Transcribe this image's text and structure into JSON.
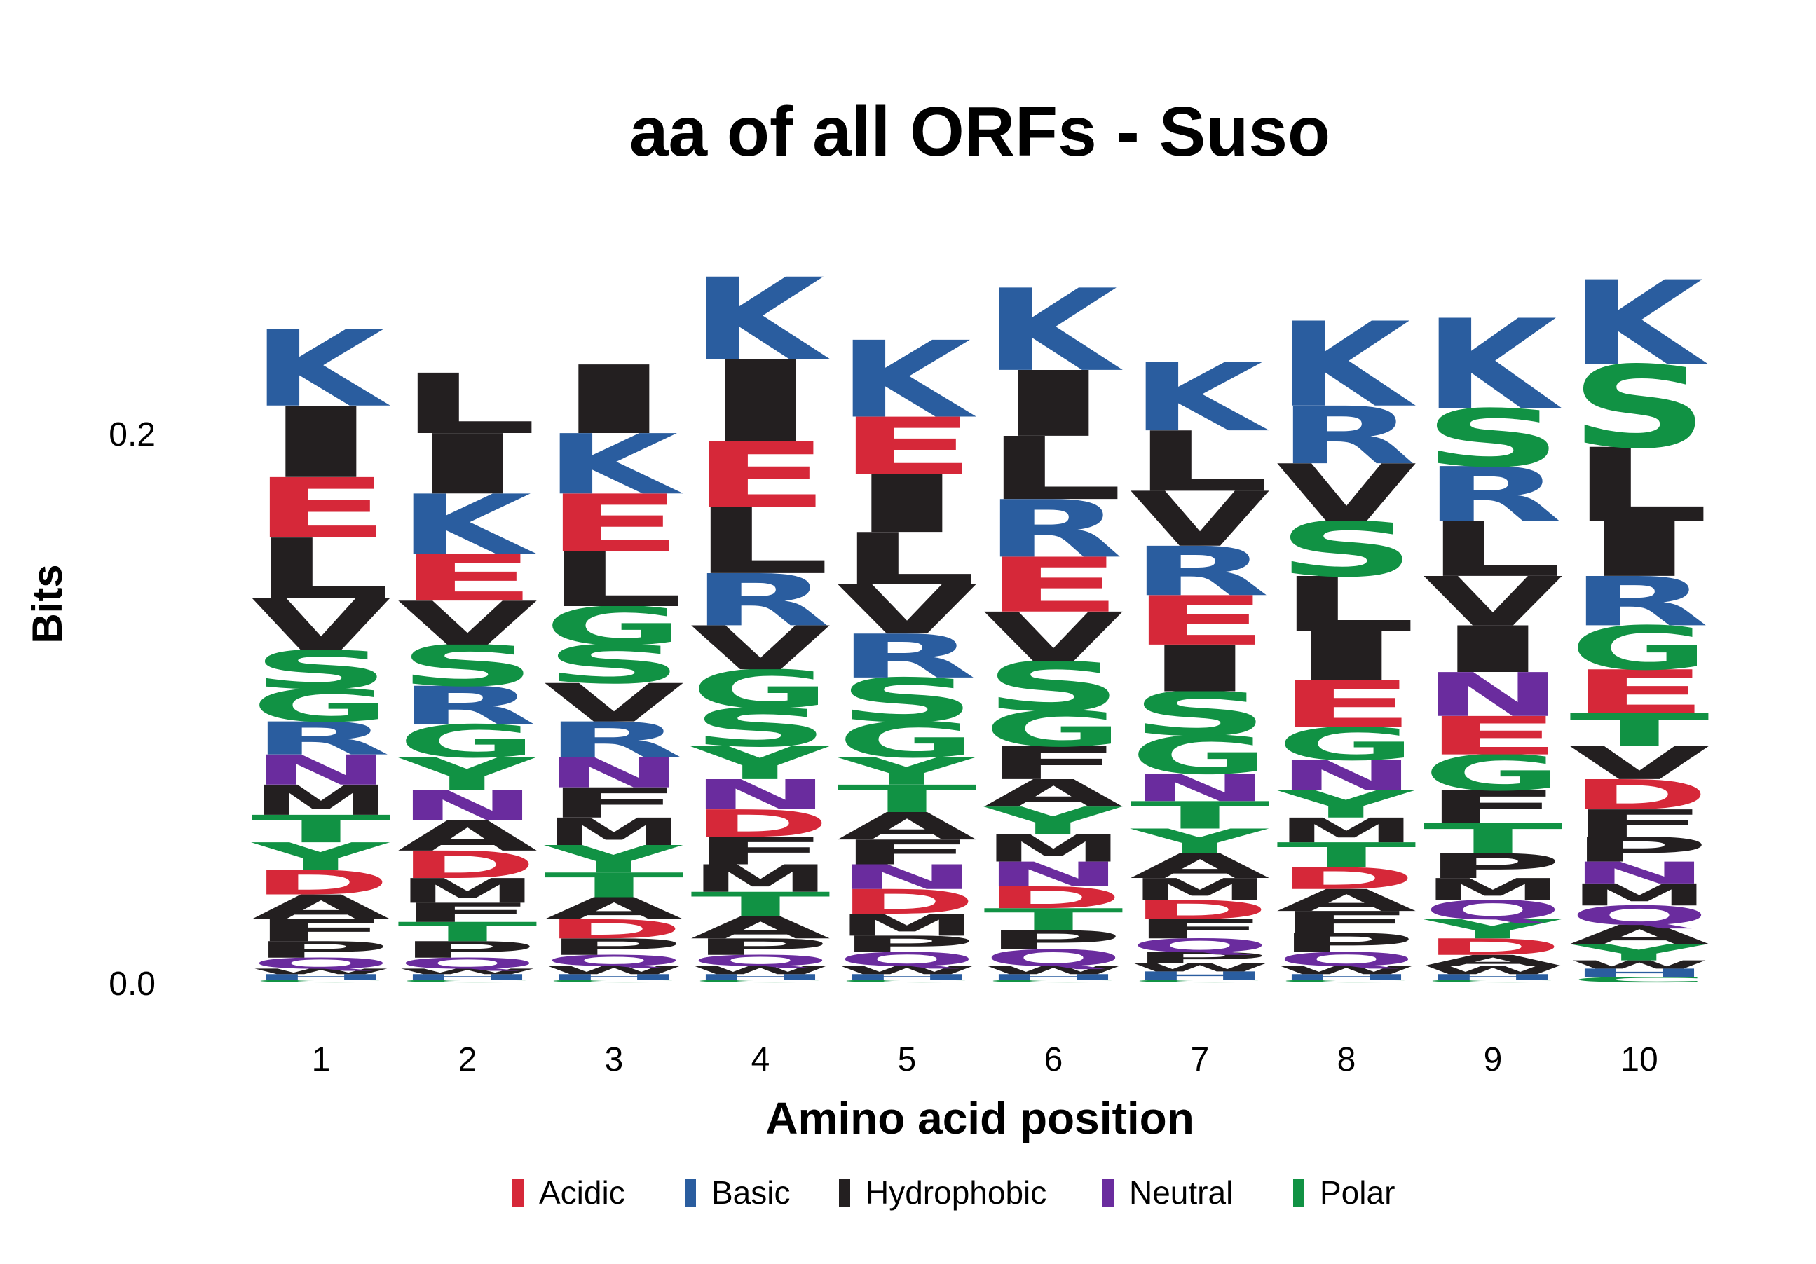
{
  "chart_data": {
    "type": "sequence-logo",
    "title": "aa of all ORFs - Suso",
    "xlabel": "Amino acid position",
    "ylabel": "Bits",
    "y_ticks": [
      "0.0",
      "0.2"
    ],
    "y_tick_values": [
      0.0,
      0.2
    ],
    "ylim": [
      0,
      0.27
    ],
    "x_ticks": [
      "1",
      "2",
      "3",
      "4",
      "5",
      "6",
      "7",
      "8",
      "9",
      "10"
    ],
    "legend_position": "bottom",
    "legend": [
      {
        "name": "Acidic",
        "color": "#D62839"
      },
      {
        "name": "Basic",
        "color": "#2A5D9F"
      },
      {
        "name": "Hydrophobic",
        "color": "#231F20"
      },
      {
        "name": "Neutral",
        "color": "#6A2C9E"
      },
      {
        "name": "Polar",
        "color": "#119244"
      }
    ],
    "letter_groups": {
      "D": "Acidic",
      "E": "Acidic",
      "K": "Basic",
      "R": "Basic",
      "H": "Basic",
      "I": "Hydrophobic",
      "L": "Hydrophobic",
      "V": "Hydrophobic",
      "M": "Hydrophobic",
      "F": "Hydrophobic",
      "A": "Hydrophobic",
      "P": "Hydrophobic",
      "W": "Hydrophobic",
      "N": "Neutral",
      "Q": "Neutral",
      "S": "Polar",
      "G": "Polar",
      "T": "Polar",
      "Y": "Polar",
      "C": "Polar"
    },
    "positions": [
      {
        "position": "1",
        "letters": [
          {
            "aa": "I",
            "bits": 0.026
          },
          {
            "aa": "K",
            "bits": 0.028
          },
          {
            "aa": "L",
            "bits": 0.022
          },
          {
            "aa": "E",
            "bits": 0.022
          },
          {
            "aa": "V",
            "bits": 0.019
          },
          {
            "aa": "S",
            "bits": 0.014
          },
          {
            "aa": "R",
            "bits": 0.012
          },
          {
            "aa": "G",
            "bits": 0.012
          },
          {
            "aa": "Y",
            "bits": 0.01
          },
          {
            "aa": "M",
            "bits": 0.011
          },
          {
            "aa": "T",
            "bits": 0.01
          },
          {
            "aa": "N",
            "bits": 0.011
          },
          {
            "aa": "A",
            "bits": 0.009
          },
          {
            "aa": "D",
            "bits": 0.009
          },
          {
            "aa": "F",
            "bits": 0.008
          },
          {
            "aa": "P",
            "bits": 0.006
          },
          {
            "aa": "Q",
            "bits": 0.004
          },
          {
            "aa": "H",
            "bits": 0.002
          },
          {
            "aa": "W",
            "bits": 0.002
          },
          {
            "aa": "C",
            "bits": 0.001
          }
        ]
      },
      {
        "position": "2",
        "letters": [
          {
            "aa": "K",
            "bits": 0.022
          },
          {
            "aa": "I",
            "bits": 0.022
          },
          {
            "aa": "L",
            "bits": 0.022
          },
          {
            "aa": "E",
            "bits": 0.017
          },
          {
            "aa": "S",
            "bits": 0.015
          },
          {
            "aa": "V",
            "bits": 0.016
          },
          {
            "aa": "R",
            "bits": 0.014
          },
          {
            "aa": "Y",
            "bits": 0.012
          },
          {
            "aa": "G",
            "bits": 0.012
          },
          {
            "aa": "A",
            "bits": 0.011
          },
          {
            "aa": "N",
            "bits": 0.011
          },
          {
            "aa": "D",
            "bits": 0.01
          },
          {
            "aa": "M",
            "bits": 0.009
          },
          {
            "aa": "T",
            "bits": 0.007
          },
          {
            "aa": "F",
            "bits": 0.007
          },
          {
            "aa": "P",
            "bits": 0.006
          },
          {
            "aa": "Q",
            "bits": 0.004
          },
          {
            "aa": "H",
            "bits": 0.002
          },
          {
            "aa": "W",
            "bits": 0.002
          },
          {
            "aa": "C",
            "bits": 0.001
          }
        ]
      },
      {
        "position": "3",
        "letters": [
          {
            "aa": "I",
            "bits": 0.025
          },
          {
            "aa": "K",
            "bits": 0.022
          },
          {
            "aa": "E",
            "bits": 0.021
          },
          {
            "aa": "L",
            "bits": 0.02
          },
          {
            "aa": "V",
            "bits": 0.014
          },
          {
            "aa": "S",
            "bits": 0.014
          },
          {
            "aa": "G",
            "bits": 0.014
          },
          {
            "aa": "R",
            "bits": 0.013
          },
          {
            "aa": "F",
            "bits": 0.011
          },
          {
            "aa": "N",
            "bits": 0.011
          },
          {
            "aa": "Y",
            "bits": 0.01
          },
          {
            "aa": "M",
            "bits": 0.01
          },
          {
            "aa": "T",
            "bits": 0.009
          },
          {
            "aa": "A",
            "bits": 0.008
          },
          {
            "aa": "D",
            "bits": 0.007
          },
          {
            "aa": "P",
            "bits": 0.006
          },
          {
            "aa": "Q",
            "bits": 0.004
          },
          {
            "aa": "W",
            "bits": 0.003
          },
          {
            "aa": "H",
            "bits": 0.002
          },
          {
            "aa": "C",
            "bits": 0.001
          }
        ]
      },
      {
        "position": "4",
        "letters": [
          {
            "aa": "I",
            "bits": 0.03
          },
          {
            "aa": "K",
            "bits": 0.03
          },
          {
            "aa": "L",
            "bits": 0.024
          },
          {
            "aa": "E",
            "bits": 0.024
          },
          {
            "aa": "R",
            "bits": 0.019
          },
          {
            "aa": "V",
            "bits": 0.016
          },
          {
            "aa": "S",
            "bits": 0.014
          },
          {
            "aa": "G",
            "bits": 0.014
          },
          {
            "aa": "Y",
            "bits": 0.012
          },
          {
            "aa": "N",
            "bits": 0.011
          },
          {
            "aa": "M",
            "bits": 0.01
          },
          {
            "aa": "F",
            "bits": 0.01
          },
          {
            "aa": "D",
            "bits": 0.01
          },
          {
            "aa": "T",
            "bits": 0.009
          },
          {
            "aa": "A",
            "bits": 0.008
          },
          {
            "aa": "P",
            "bits": 0.006
          },
          {
            "aa": "Q",
            "bits": 0.004
          },
          {
            "aa": "W",
            "bits": 0.003
          },
          {
            "aa": "H",
            "bits": 0.002
          },
          {
            "aa": "C",
            "bits": 0.001
          }
        ]
      },
      {
        "position": "5",
        "letters": [
          {
            "aa": "K",
            "bits": 0.028
          },
          {
            "aa": "I",
            "bits": 0.021
          },
          {
            "aa": "E",
            "bits": 0.021
          },
          {
            "aa": "L",
            "bits": 0.019
          },
          {
            "aa": "V",
            "bits": 0.018
          },
          {
            "aa": "S",
            "bits": 0.016
          },
          {
            "aa": "R",
            "bits": 0.016
          },
          {
            "aa": "G",
            "bits": 0.013
          },
          {
            "aa": "A",
            "bits": 0.01
          },
          {
            "aa": "T",
            "bits": 0.01
          },
          {
            "aa": "Y",
            "bits": 0.01
          },
          {
            "aa": "D",
            "bits": 0.009
          },
          {
            "aa": "N",
            "bits": 0.009
          },
          {
            "aa": "F",
            "bits": 0.009
          },
          {
            "aa": "M",
            "bits": 0.008
          },
          {
            "aa": "P",
            "bits": 0.006
          },
          {
            "aa": "Q",
            "bits": 0.005
          },
          {
            "aa": "W",
            "bits": 0.003
          },
          {
            "aa": "H",
            "bits": 0.002
          },
          {
            "aa": "C",
            "bits": 0.001
          }
        ]
      },
      {
        "position": "6",
        "letters": [
          {
            "aa": "K",
            "bits": 0.03
          },
          {
            "aa": "I",
            "bits": 0.024
          },
          {
            "aa": "L",
            "bits": 0.023
          },
          {
            "aa": "R",
            "bits": 0.021
          },
          {
            "aa": "E",
            "bits": 0.02
          },
          {
            "aa": "S",
            "bits": 0.018
          },
          {
            "aa": "V",
            "bits": 0.018
          },
          {
            "aa": "G",
            "bits": 0.013
          },
          {
            "aa": "F",
            "bits": 0.012
          },
          {
            "aa": "M",
            "bits": 0.01
          },
          {
            "aa": "Y",
            "bits": 0.01
          },
          {
            "aa": "A",
            "bits": 0.01
          },
          {
            "aa": "T",
            "bits": 0.008
          },
          {
            "aa": "N",
            "bits": 0.009
          },
          {
            "aa": "D",
            "bits": 0.008
          },
          {
            "aa": "P",
            "bits": 0.007
          },
          {
            "aa": "Q",
            "bits": 0.006
          },
          {
            "aa": "W",
            "bits": 0.003
          },
          {
            "aa": "H",
            "bits": 0.002
          },
          {
            "aa": "C",
            "bits": 0.001
          }
        ]
      },
      {
        "position": "7",
        "letters": [
          {
            "aa": "K",
            "bits": 0.025
          },
          {
            "aa": "L",
            "bits": 0.022
          },
          {
            "aa": "I",
            "bits": 0.017
          },
          {
            "aa": "V",
            "bits": 0.02
          },
          {
            "aa": "E",
            "bits": 0.018
          },
          {
            "aa": "R",
            "bits": 0.018
          },
          {
            "aa": "S",
            "bits": 0.016
          },
          {
            "aa": "G",
            "bits": 0.014
          },
          {
            "aa": "T",
            "bits": 0.01
          },
          {
            "aa": "N",
            "bits": 0.01
          },
          {
            "aa": "A",
            "bits": 0.009
          },
          {
            "aa": "F",
            "bits": 0.007
          },
          {
            "aa": "Y",
            "bits": 0.009
          },
          {
            "aa": "M",
            "bits": 0.008
          },
          {
            "aa": "D",
            "bits": 0.007
          },
          {
            "aa": "Q",
            "bits": 0.005
          },
          {
            "aa": "P",
            "bits": 0.004
          },
          {
            "aa": "H",
            "bits": 0.003
          },
          {
            "aa": "W",
            "bits": 0.003
          },
          {
            "aa": "C",
            "bits": 0.001
          }
        ]
      },
      {
        "position": "8",
        "letters": [
          {
            "aa": "K",
            "bits": 0.031
          },
          {
            "aa": "L",
            "bits": 0.02
          },
          {
            "aa": "I",
            "bits": 0.018
          },
          {
            "aa": "V",
            "bits": 0.021
          },
          {
            "aa": "R",
            "bits": 0.021
          },
          {
            "aa": "S",
            "bits": 0.02
          },
          {
            "aa": "E",
            "bits": 0.017
          },
          {
            "aa": "G",
            "bits": 0.012
          },
          {
            "aa": "N",
            "bits": 0.011
          },
          {
            "aa": "Y",
            "bits": 0.01
          },
          {
            "aa": "T",
            "bits": 0.009
          },
          {
            "aa": "M",
            "bits": 0.009
          },
          {
            "aa": "F",
            "bits": 0.008
          },
          {
            "aa": "A",
            "bits": 0.008
          },
          {
            "aa": "D",
            "bits": 0.008
          },
          {
            "aa": "P",
            "bits": 0.007
          },
          {
            "aa": "Q",
            "bits": 0.005
          },
          {
            "aa": "W",
            "bits": 0.003
          },
          {
            "aa": "H",
            "bits": 0.002
          },
          {
            "aa": "C",
            "bits": 0.001
          }
        ]
      },
      {
        "position": "9",
        "letters": [
          {
            "aa": "K",
            "bits": 0.033
          },
          {
            "aa": "S",
            "bits": 0.021
          },
          {
            "aa": "L",
            "bits": 0.02
          },
          {
            "aa": "I",
            "bits": 0.017
          },
          {
            "aa": "R",
            "bits": 0.02
          },
          {
            "aa": "V",
            "bits": 0.018
          },
          {
            "aa": "N",
            "bits": 0.016
          },
          {
            "aa": "E",
            "bits": 0.014
          },
          {
            "aa": "G",
            "bits": 0.013
          },
          {
            "aa": "F",
            "bits": 0.012
          },
          {
            "aa": "T",
            "bits": 0.011
          },
          {
            "aa": "P",
            "bits": 0.009
          },
          {
            "aa": "M",
            "bits": 0.008
          },
          {
            "aa": "Y",
            "bits": 0.007
          },
          {
            "aa": "Q",
            "bits": 0.007
          },
          {
            "aa": "D",
            "bits": 0.006
          },
          {
            "aa": "A",
            "bits": 0.004
          },
          {
            "aa": "W",
            "bits": 0.003
          },
          {
            "aa": "H",
            "bits": 0.002
          },
          {
            "aa": "C",
            "bits": 0.001
          }
        ]
      },
      {
        "position": "10",
        "letters": [
          {
            "aa": "S",
            "bits": 0.03
          },
          {
            "aa": "K",
            "bits": 0.031
          },
          {
            "aa": "L",
            "bits": 0.027
          },
          {
            "aa": "I",
            "bits": 0.02
          },
          {
            "aa": "E",
            "bits": 0.016
          },
          {
            "aa": "R",
            "bits": 0.018
          },
          {
            "aa": "G",
            "bits": 0.016
          },
          {
            "aa": "V",
            "bits": 0.012
          },
          {
            "aa": "T",
            "bits": 0.012
          },
          {
            "aa": "D",
            "bits": 0.011
          },
          {
            "aa": "F",
            "bits": 0.01
          },
          {
            "aa": "P",
            "bits": 0.009
          },
          {
            "aa": "M",
            "bits": 0.008
          },
          {
            "aa": "A",
            "bits": 0.007
          },
          {
            "aa": "Q",
            "bits": 0.007
          },
          {
            "aa": "Y",
            "bits": 0.006
          },
          {
            "aa": "N",
            "bits": 0.008
          },
          {
            "aa": "H",
            "bits": 0.003
          },
          {
            "aa": "C",
            "bits": 0.002
          },
          {
            "aa": "W",
            "bits": 0.003
          }
        ]
      }
    ]
  }
}
